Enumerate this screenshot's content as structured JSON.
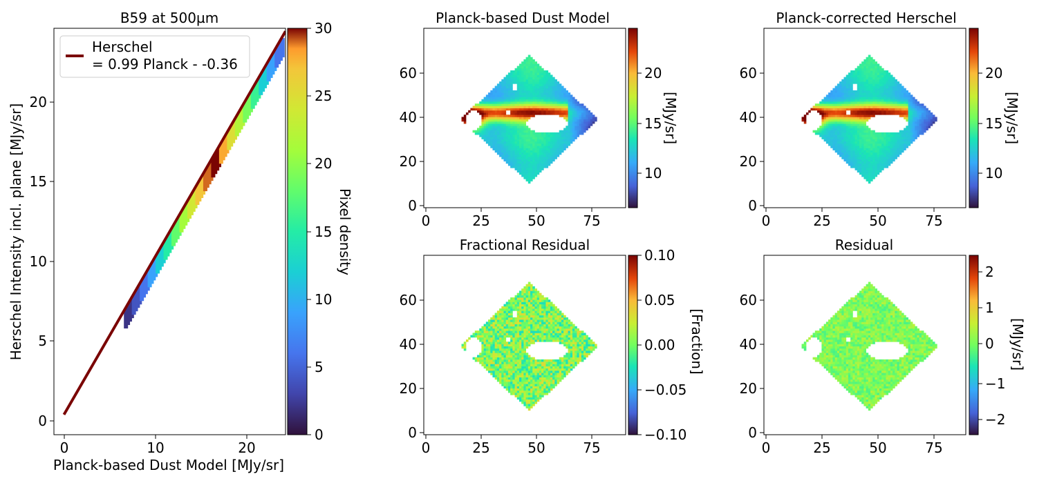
{
  "chart_data": [
    {
      "type": "heatmap",
      "title": "B59 at 500µm",
      "xlabel": "Planck-based Dust Model [MJy/sr]",
      "ylabel": "Herschel Intensity incl. plane [MJy/sr]",
      "xlim": [
        -1.1,
        24.3
      ],
      "ylim": [
        -0.9,
        24.6
      ],
      "xticks": [
        "0",
        "10",
        "20"
      ],
      "yticks": [
        "0",
        "5",
        "10",
        "15",
        "20"
      ],
      "colorbar": {
        "label": "Pixel density",
        "range": [
          0,
          30
        ],
        "ticks": [
          "0",
          "5",
          "10",
          "15",
          "20",
          "25",
          "30"
        ]
      },
      "legend": {
        "position": "top-left",
        "line1": "Herschel",
        "line2": "= 0.99 Planck - -0.36",
        "color": "#7a0403"
      },
      "fit": {
        "slope": 0.99,
        "intercept": 0.36,
        "x_range": [
          0,
          24.3
        ]
      },
      "density_along_fit": {
        "x_range": [
          6.8,
          24.2
        ],
        "values": [
          2,
          4,
          6,
          9,
          12,
          15,
          18,
          21,
          24,
          27,
          29,
          30,
          28,
          25,
          22,
          19,
          16,
          12,
          9,
          6
        ]
      }
    },
    {
      "type": "heatmap",
      "title": "Planck-based Dust Model",
      "xticks": [
        "0",
        "25",
        "50",
        "75"
      ],
      "yticks": [
        "0",
        "20",
        "40",
        "60"
      ],
      "xlim": [
        -1,
        90
      ],
      "ylim": [
        -1,
        80
      ],
      "colorbar": {
        "label": "[MJy/sr]",
        "range": [
          6.5,
          24
        ],
        "ticks": [
          "10",
          "15",
          "20"
        ]
      }
    },
    {
      "type": "heatmap",
      "title": "Planck-corrected Herschel",
      "xticks": [
        "0",
        "25",
        "50",
        "75"
      ],
      "yticks": [
        "0",
        "20",
        "40",
        "60"
      ],
      "xlim": [
        -1,
        90
      ],
      "ylim": [
        -1,
        80
      ],
      "colorbar": {
        "label": "[MJy/sr]",
        "range": [
          6.5,
          24
        ],
        "ticks": [
          "10",
          "15",
          "20"
        ]
      }
    },
    {
      "type": "heatmap",
      "title": "Fractional Residual",
      "xticks": [
        "0",
        "25",
        "50",
        "75"
      ],
      "yticks": [
        "0",
        "20",
        "40",
        "60"
      ],
      "xlim": [
        -1,
        90
      ],
      "ylim": [
        -1,
        80
      ],
      "colorbar": {
        "label": "[Fraction]",
        "range": [
          -0.1,
          0.1
        ],
        "ticks": [
          "0.10",
          "0.05",
          "0.00",
          "−0.05",
          "−0.10"
        ]
      }
    },
    {
      "type": "heatmap",
      "title": "Residual",
      "xticks": [
        "0",
        "25",
        "50",
        "75"
      ],
      "yticks": [
        "0",
        "20",
        "40",
        "60"
      ],
      "xlim": [
        -1,
        90
      ],
      "ylim": [
        -1,
        80
      ],
      "colorbar": {
        "label": "[MJy/sr]",
        "range": [
          -2.5,
          2.4
        ],
        "ticks": [
          "2",
          "1",
          "0",
          "−1",
          "−2"
        ]
      }
    }
  ]
}
